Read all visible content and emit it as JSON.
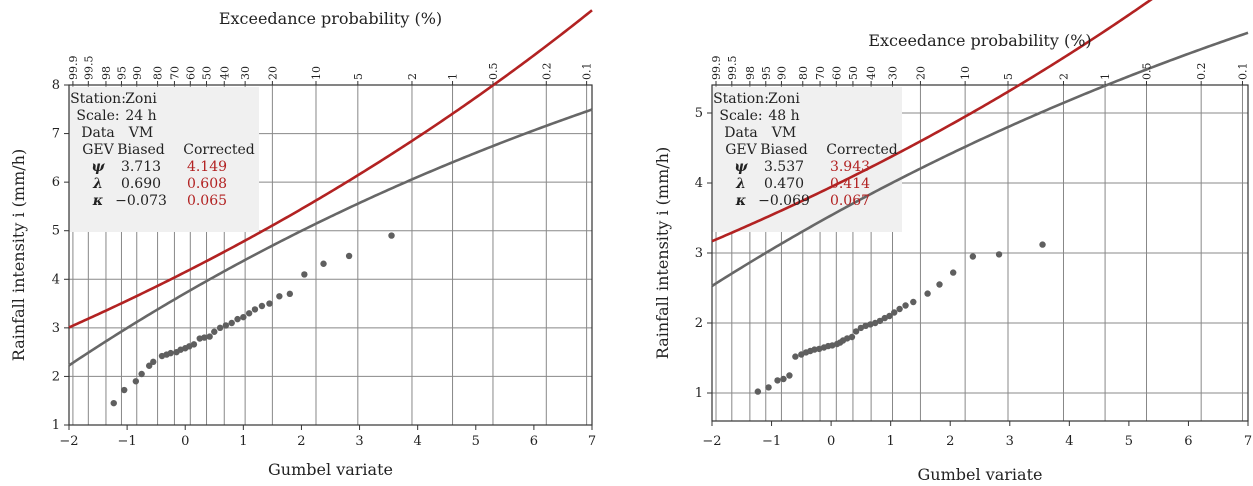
{
  "chart_data": [
    {
      "type": "scatter",
      "top_title": "Exceedance probability (%)",
      "xlabel": "Gumbel variate",
      "ylabel": "Rainfall intensity i (mm/h)",
      "xlim": [
        -2,
        7
      ],
      "ylim": [
        1,
        8
      ],
      "x_ticks": [
        "−2",
        "−1",
        "0",
        "1",
        "2",
        "3",
        "4",
        "5",
        "6",
        "7"
      ],
      "y_ticks": [
        "1",
        "2",
        "3",
        "4",
        "5",
        "6",
        "7",
        "8"
      ],
      "top_ticks": [
        "99.9",
        "99.5",
        "98",
        "95",
        "90",
        "80",
        "70",
        "60",
        "50",
        "40",
        "30",
        "20",
        "10",
        "5",
        "2",
        "1",
        "0.5",
        "0.2",
        "0.1"
      ],
      "grid": true,
      "legend_table": {
        "station_label": "Station:",
        "station": "Zoni",
        "scale_label": "Scale:",
        "scale": "24 h",
        "data_label": "Data",
        "data": "VM",
        "gev_label": "GEV",
        "biased_label": "Biased",
        "corrected_label": "Corrected",
        "rows": [
          {
            "param": "ψ",
            "biased": "3.713",
            "corrected": "4.149"
          },
          {
            "param": "λ",
            "biased": "0.690",
            "corrected": "0.608"
          },
          {
            "param": "κ",
            "biased": "−0.073",
            "corrected": "0.065"
          }
        ]
      },
      "gev_biased": {
        "psi": 3.713,
        "lambda": 0.69,
        "kappa": -0.073
      },
      "gev_corrected": {
        "psi": 4.149,
        "lambda": 0.608,
        "kappa": 0.065
      },
      "series": [
        {
          "type": "line",
          "color": "#676767"
        },
        {
          "type": "line",
          "color": "#b22222"
        },
        {
          "type": "scatter",
          "color": "#5f5f5f",
          "x": [
            -1.23,
            -1.05,
            -0.85,
            -0.75,
            -0.62,
            -0.55,
            -0.4,
            -0.32,
            -0.25,
            -0.15,
            -0.08,
            0.0,
            0.07,
            0.15,
            0.25,
            0.33,
            0.42,
            0.5,
            0.6,
            0.7,
            0.8,
            0.9,
            1.0,
            1.1,
            1.2,
            1.32,
            1.45,
            1.62,
            1.8,
            2.05,
            2.38,
            2.82,
            3.55
          ],
          "y": [
            1.45,
            1.72,
            1.9,
            2.05,
            2.22,
            2.3,
            2.42,
            2.45,
            2.48,
            2.5,
            2.55,
            2.58,
            2.62,
            2.66,
            2.78,
            2.8,
            2.82,
            2.92,
            3.0,
            3.05,
            3.1,
            3.18,
            3.22,
            3.3,
            3.38,
            3.45,
            3.5,
            3.65,
            3.7,
            4.1,
            4.32,
            4.48,
            4.9
          ]
        }
      ]
    },
    {
      "type": "scatter",
      "top_title": "Exceedance probability (%)",
      "xlabel": "Gumbel variate",
      "ylabel": "Rainfall intensity i (mm/h)",
      "xlim": [
        -2,
        7
      ],
      "ylim": [
        0.6,
        5.4
      ],
      "x_ticks": [
        "−2",
        "−1",
        "0",
        "1",
        "2",
        "3",
        "4",
        "5",
        "6",
        "7"
      ],
      "y_ticks": [
        "1",
        "2",
        "3",
        "4",
        "5"
      ],
      "top_ticks": [
        "99.9",
        "99.5",
        "98",
        "95",
        "90",
        "80",
        "70",
        "60",
        "50",
        "40",
        "30",
        "20",
        "10",
        "5",
        "2",
        "1",
        "0.5",
        "0.2",
        "0.1"
      ],
      "grid": true,
      "legend_table": {
        "station_label": "Station:",
        "station": "Zoni",
        "scale_label": "Scale:",
        "scale": "48 h",
        "data_label": "Data",
        "data": "VM",
        "gev_label": "GEV",
        "biased_label": "Biased",
        "corrected_label": "Corrected",
        "rows": [
          {
            "param": "ψ",
            "biased": "3.537",
            "corrected": "3.943"
          },
          {
            "param": "λ",
            "biased": "0.470",
            "corrected": "0.414"
          },
          {
            "param": "κ",
            "biased": "−0.069",
            "corrected": "0.067"
          }
        ]
      },
      "gev_biased": {
        "psi": 3.537,
        "lambda": 0.47,
        "kappa": -0.069
      },
      "gev_corrected": {
        "psi": 3.943,
        "lambda": 0.414,
        "kappa": 0.067
      },
      "series": [
        {
          "type": "line",
          "color": "#676767"
        },
        {
          "type": "line",
          "color": "#b22222"
        },
        {
          "type": "scatter",
          "color": "#5f5f5f",
          "x": [
            -1.23,
            -1.05,
            -0.9,
            -0.8,
            -0.7,
            -0.6,
            -0.5,
            -0.42,
            -0.35,
            -0.28,
            -0.2,
            -0.12,
            -0.05,
            0.02,
            0.1,
            0.15,
            0.2,
            0.27,
            0.35,
            0.42,
            0.5,
            0.58,
            0.66,
            0.74,
            0.82,
            0.9,
            0.98,
            1.06,
            1.15,
            1.25,
            1.38,
            1.62,
            1.82,
            2.05,
            2.38,
            2.82,
            3.55
          ],
          "y": [
            1.02,
            1.08,
            1.18,
            1.2,
            1.25,
            1.52,
            1.55,
            1.58,
            1.6,
            1.62,
            1.63,
            1.65,
            1.67,
            1.68,
            1.7,
            1.72,
            1.75,
            1.78,
            1.8,
            1.88,
            1.93,
            1.96,
            1.98,
            2.0,
            2.03,
            2.07,
            2.1,
            2.15,
            2.2,
            2.25,
            2.3,
            2.42,
            2.55,
            2.72,
            2.95,
            2.98,
            3.12
          ]
        }
      ]
    }
  ]
}
